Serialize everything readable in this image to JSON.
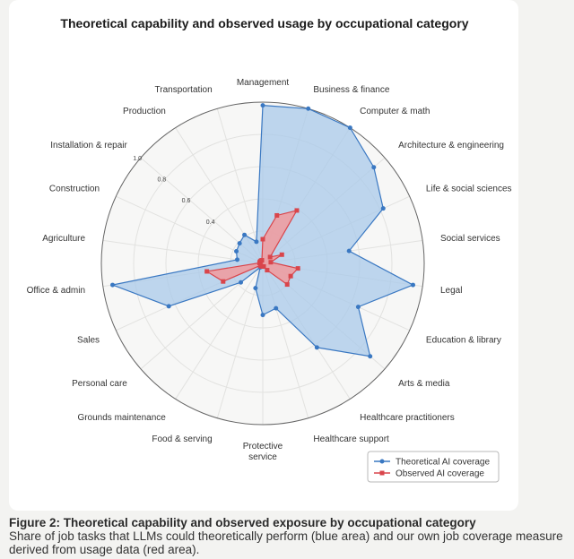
{
  "chart_data": {
    "type": "radar",
    "title": "Theoretical capability and observed usage by occupational category",
    "categories": [
      "Management",
      "Business & finance",
      "Computer & math",
      "Architecture & engineering",
      "Life & social sciences",
      "Social services",
      "Legal",
      "Education & library",
      "Arts & media",
      "Healthcare practitioners",
      "Healthcare support",
      "Protective service",
      "Food & serving",
      "Grounds maintenance",
      "Personal care",
      "Sales",
      "Office & admin",
      "Agriculture",
      "Construction",
      "Installation & repair",
      "Production",
      "Transportation"
    ],
    "radial_ticks": [
      "0.4",
      "0.6",
      "0.8",
      "1.0"
    ],
    "rlim": [
      0,
      1.0
    ],
    "series": [
      {
        "name": "Theoretical AI coverage",
        "color": "#3a78c2",
        "fill": "#a9c9ea",
        "values": [
          0.98,
          1.0,
          1.0,
          0.91,
          0.82,
          0.54,
          0.94,
          0.65,
          0.88,
          0.62,
          0.29,
          0.32,
          0.16,
          0.03,
          0.18,
          0.64,
          0.94,
          0.16,
          0.18,
          0.19,
          0.21,
          0.14
        ]
      },
      {
        "name": "Observed AI coverage",
        "color": "#d9454b",
        "fill": "#f19a9c",
        "values": [
          0.15,
          0.31,
          0.39,
          0.06,
          0.13,
          0.05,
          0.22,
          0.19,
          0.2,
          0.05,
          0.02,
          0.02,
          0.02,
          0.02,
          0.02,
          0.27,
          0.35,
          0.02,
          0.02,
          0.02,
          0.02,
          0.02
        ]
      }
    ],
    "legend_position": "bottom-right",
    "grid": true
  },
  "caption": {
    "title": "Figure 2: Theoretical capability and observed exposure by occupational category",
    "text": "Share of job tasks that LLMs could theoretically perform (blue area) and our own job coverage measure derived from usage data (red area)."
  }
}
